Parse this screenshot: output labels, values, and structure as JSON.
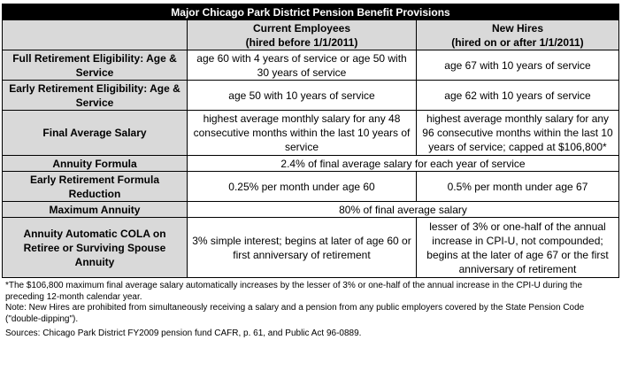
{
  "title": "Major Chicago Park District Pension Benefit Provisions",
  "columns": {
    "current": {
      "line1": "Current Employees",
      "line2": "(hired before 1/1/2011)"
    },
    "new": {
      "line1": "New Hires",
      "line2": "(hired on or after 1/1/2011)"
    }
  },
  "rows": {
    "full_retirement": {
      "label": "Full Retirement Eligibility: Age & Service",
      "current": "age 60 with 4 years of service or age 50 with 30 years of service",
      "new": "age 67 with 10 years of service"
    },
    "early_retirement": {
      "label": "Early Retirement Eligibility: Age & Service",
      "current": "age 50 with 10 years of service",
      "new": "age 62 with 10 years of service"
    },
    "final_average_salary": {
      "label": "Final Average Salary",
      "current": "highest average monthly salary for any 48 consecutive months within the last 10 years of service",
      "new": "highest average monthly salary for any 96 consecutive months within the last 10 years of service; capped at $106,800*"
    },
    "annuity_formula": {
      "label": "Annuity Formula",
      "both": "2.4% of final average salary for each year of service"
    },
    "early_reduction": {
      "label": "Early Retirement Formula Reduction",
      "current": "0.25% per month under age 60",
      "new": "0.5% per month under age 67"
    },
    "maximum_annuity": {
      "label": "Maximum Annuity",
      "both": "80% of final average salary"
    },
    "cola": {
      "label": "Annuity Automatic COLA on Retiree or Surviving Spouse Annuity",
      "current": "3% simple interest; begins at later of age 60 or first anniversary of retirement",
      "new": "lesser of 3% or one-half of the annual increase in CPI-U, not compounded; begins at the later of age 67 or the first anniversary of retirement"
    }
  },
  "notes": {
    "footnote": "*The $106,800 maximum final average salary automatically increases by the lesser of 3% or one-half of the annual increase in the CPI-U during the preceding 12-month calendar year.",
    "note": "Note: New Hires are prohibited from simultaneously receiving a salary and a pension from any public employers covered by the State Pension Code (\"double-dipping\").",
    "sources": "Sources: Chicago Park District FY2009 pension fund CAFR, p. 61, and Public Act 96-0889."
  }
}
